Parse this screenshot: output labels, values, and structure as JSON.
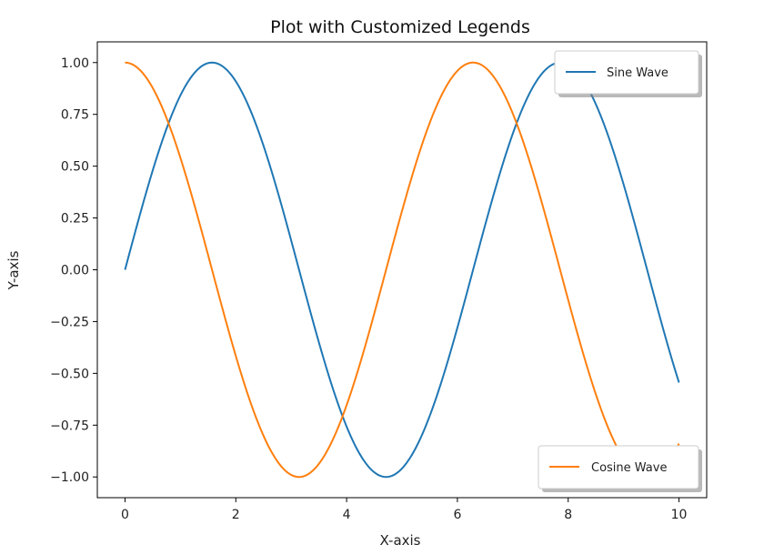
{
  "chart_data": {
    "type": "line",
    "title": "Plot with Customized Legends",
    "xlabel": "X-axis",
    "ylabel": "Y-axis",
    "xlim": [
      -0.5,
      10.5
    ],
    "ylim": [
      -1.1,
      1.1
    ],
    "xticks": [
      0,
      2,
      4,
      6,
      8,
      10
    ],
    "xtick_labels": [
      "0",
      "2",
      "4",
      "6",
      "8",
      "10"
    ],
    "yticks": [
      1.0,
      0.75,
      0.5,
      0.25,
      0.0,
      -0.25,
      -0.5,
      -0.75,
      -1.0
    ],
    "ytick_labels": [
      "1.00",
      "0.75",
      "0.50",
      "0.25",
      "0.00",
      "−0.25",
      "−0.50",
      "−0.75",
      "−1.00"
    ],
    "grid": false,
    "x_range": [
      0,
      10
    ],
    "series": [
      {
        "name": "Sine Wave",
        "function": "sin",
        "color": "#1f77b4",
        "legend_loc": "upper right"
      },
      {
        "name": "Cosine Wave",
        "function": "cos",
        "color": "#ff7f0e",
        "legend_loc": "lower right"
      }
    ]
  }
}
